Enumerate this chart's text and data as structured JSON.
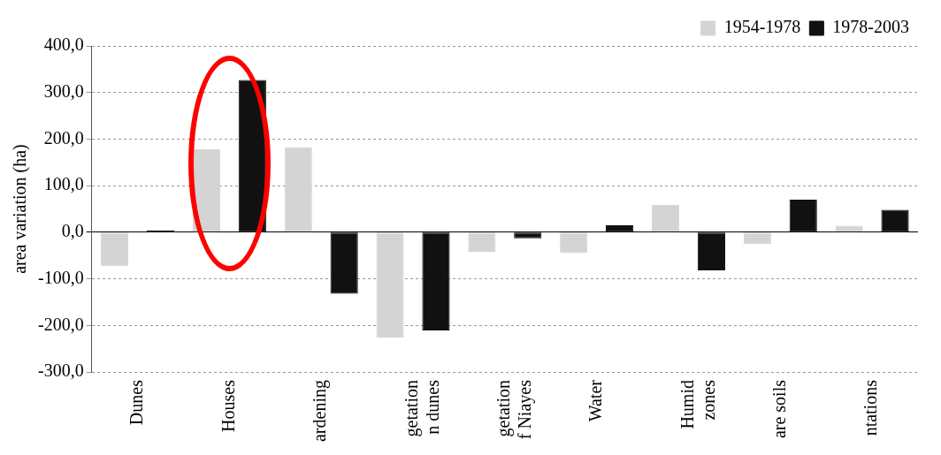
{
  "chart_data": {
    "type": "bar",
    "ylabel": "area variation (ha)",
    "categories": [
      "Dunes",
      "Houses",
      "ardening",
      "getation\nn dunes",
      "getation\nf Niayes",
      "Water",
      "Humid\nzones",
      "are soils",
      "ntations"
    ],
    "series": [
      {
        "name": "1954-1978",
        "color": "#d4d4d4",
        "values": [
          -73,
          178,
          183,
          -226,
          -42,
          -45,
          59,
          -25,
          14
        ]
      },
      {
        "name": "1978-2003",
        "color": "#111111",
        "values": [
          4,
          327,
          -132,
          -211,
          -13,
          15,
          -82,
          70,
          48
        ]
      }
    ],
    "ylim": [
      -300,
      400
    ],
    "yticks": [
      {
        "value": -300,
        "label": "-300,0"
      },
      {
        "value": -200,
        "label": "-200,0"
      },
      {
        "value": -100,
        "label": "-100,0"
      },
      {
        "value": 0,
        "label": "0,0"
      },
      {
        "value": 100,
        "label": "100,0"
      },
      {
        "value": 200,
        "label": "200,0"
      },
      {
        "value": 300,
        "label": "300,0"
      },
      {
        "value": 400,
        "label": "400,0"
      }
    ],
    "grid": "y",
    "legend": "top right"
  }
}
